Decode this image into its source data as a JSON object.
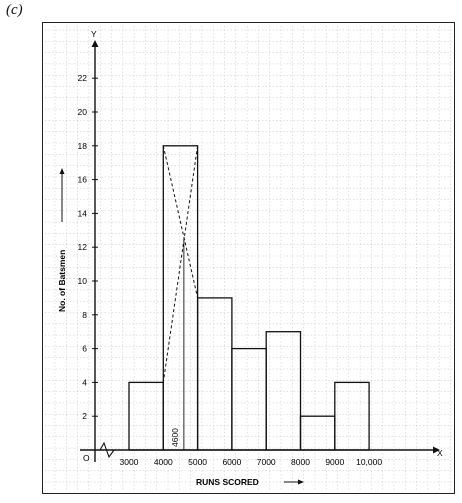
{
  "part_label": "(c)",
  "chart_data": {
    "type": "bar",
    "subtype": "histogram",
    "bins": [
      {
        "from": 3000,
        "to": 4000,
        "value": 4
      },
      {
        "from": 4000,
        "to": 5000,
        "value": 18
      },
      {
        "from": 5000,
        "to": 6000,
        "value": 9
      },
      {
        "from": 6000,
        "to": 7000,
        "value": 6
      },
      {
        "from": 7000,
        "to": 8000,
        "value": 7
      },
      {
        "from": 8000,
        "to": 9000,
        "value": 2
      },
      {
        "from": 9000,
        "to": 10000,
        "value": 4
      }
    ],
    "x_tick_labels": [
      "3000",
      "4000",
      "5000",
      "6000",
      "7000",
      "8000",
      "9000",
      "10,000"
    ],
    "y_ticks": [
      2,
      4,
      6,
      8,
      10,
      12,
      14,
      16,
      18,
      20,
      22
    ],
    "xlabel": "RUNS SCORED",
    "ylabel": "No. of Batsmen",
    "x_axis_letter": "X",
    "y_axis_letter": "Y",
    "origin_label": "O",
    "ylim": [
      0,
      22
    ],
    "xlim": [
      3000,
      10000
    ],
    "axis_break": "zig-zag on x-axis between origin and 3000",
    "mode_construction": {
      "modal_bin": [
        4000,
        5000
      ],
      "diagonals": "from the top corners of the modal bar to the tops of the neighbouring bars",
      "mode_value": 4600,
      "mode_label": "4600"
    },
    "grid": true
  }
}
